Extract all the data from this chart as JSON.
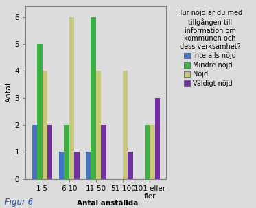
{
  "categories": [
    "1-5",
    "6-10",
    "11-50",
    "51-100",
    "101 eller\nfler"
  ],
  "series": {
    "Inte alls nöjd": [
      2,
      1,
      1,
      0,
      0
    ],
    "Mindre nöjd": [
      5,
      2,
      6,
      0,
      2
    ],
    "Nöjd": [
      4,
      6,
      4,
      4,
      2
    ],
    "Väldigt nöjd": [
      2,
      1,
      2,
      1,
      3
    ]
  },
  "colors": {
    "Inte alls nöjd": "#4472C4",
    "Mindre nöjd": "#3CB043",
    "Nöjd": "#C8C87A",
    "Väldigt nöjd": "#7030A0"
  },
  "ylabel": "Antal",
  "xlabel": "Antal anställda",
  "ylim": [
    0,
    6.4
  ],
  "yticks": [
    0,
    1,
    2,
    3,
    4,
    5,
    6
  ],
  "legend_title": "Hur nöjd är du med\ntillgången till\ninformation om\nkommunen och\ndess verksamhet?",
  "figur_label": "Figur 6",
  "background_color": "#DCDCDC",
  "bar_width": 0.19,
  "legend_title_fontsize": 7.0,
  "legend_fontsize": 7.0,
  "axis_label_fontsize": 8,
  "tick_fontsize": 7.5
}
